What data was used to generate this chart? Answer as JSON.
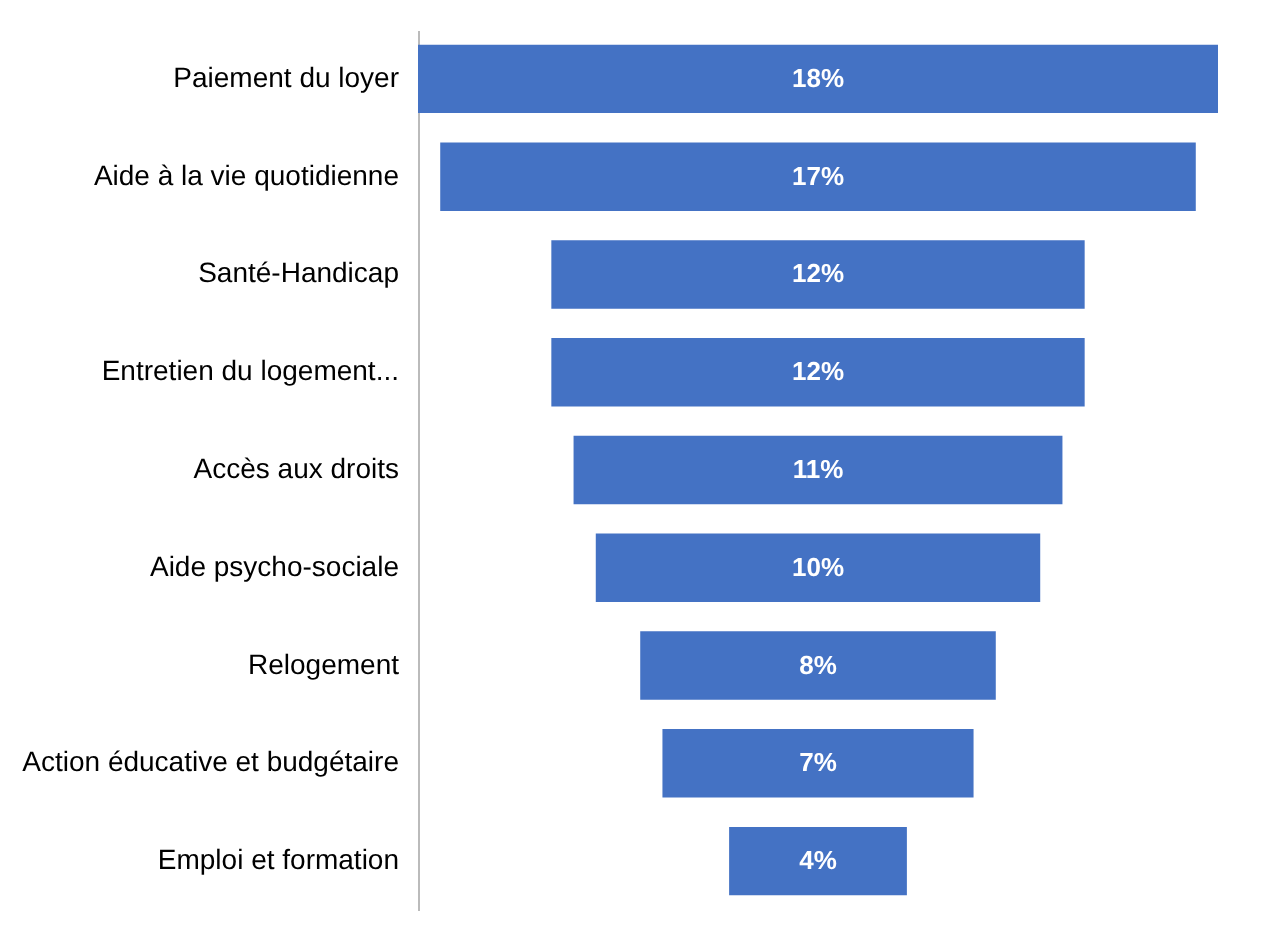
{
  "chart_data": {
    "type": "other",
    "categories": [
      "Paiement du loyer",
      "Aide à la vie quotidienne",
      "Santé-Handicap",
      "Entretien du logement...",
      "Accès aux droits",
      "Aide psycho-sociale",
      "Relogement",
      "Action éducative et budgétaire",
      "Emploi et formation"
    ],
    "values": [
      18,
      17,
      12,
      12,
      11,
      10,
      8,
      7,
      4
    ],
    "value_labels": [
      "18%",
      "17%",
      "12%",
      "12%",
      "11%",
      "10%",
      "8%",
      "7%",
      "4%"
    ],
    "color": "#4472c4"
  }
}
